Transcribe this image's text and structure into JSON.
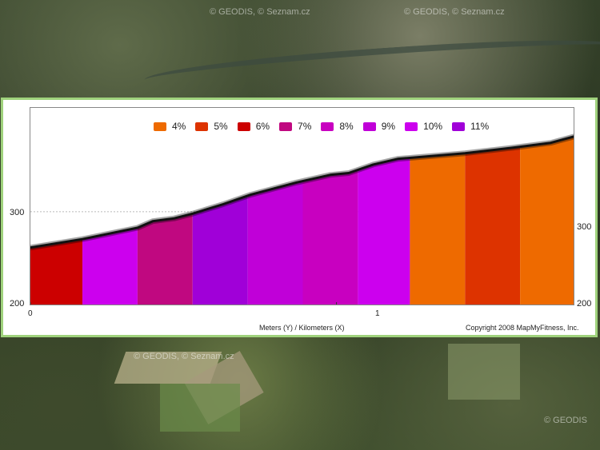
{
  "map": {
    "watermark_top_left": "© GEODIS, © Seznam.cz",
    "watermark_top_right": "© GEODIS, © Seznam.cz",
    "watermark_bottom_left": "© GEODIS, © Seznam.cz",
    "watermark_bottom_right": "© GEODIS"
  },
  "chart_data": {
    "type": "area",
    "x_unit": "km",
    "y_unit": "m",
    "xlabel": "Meters (Y) / Kilometers (X)",
    "copyright": "Copyright 2008 MapMyFitness, Inc.",
    "xlim": [
      0,
      1.78
    ],
    "ylim": [
      200,
      410
    ],
    "x_ticks": [
      0,
      1
    ],
    "y_ticks": [
      200,
      300
    ],
    "grid_line_y": 300,
    "legend_position": "top",
    "legend": [
      {
        "label": "4%",
        "color": "#ee6a00"
      },
      {
        "label": "5%",
        "color": "#dd3300"
      },
      {
        "label": "6%",
        "color": "#cc0000"
      },
      {
        "label": "7%",
        "color": "#c00880"
      },
      {
        "label": "8%",
        "color": "#c800c0"
      },
      {
        "label": "9%",
        "color": "#c000d8"
      },
      {
        "label": "10%",
        "color": "#cc00ee"
      },
      {
        "label": "11%",
        "color": "#a000d8"
      }
    ],
    "profile": [
      {
        "x": 0.0,
        "y": 262
      },
      {
        "x": 0.17,
        "y": 271
      },
      {
        "x": 0.35,
        "y": 283
      },
      {
        "x": 0.4,
        "y": 290
      },
      {
        "x": 0.47,
        "y": 293
      },
      {
        "x": 0.53,
        "y": 298
      },
      {
        "x": 0.63,
        "y": 308
      },
      {
        "x": 0.72,
        "y": 318
      },
      {
        "x": 0.87,
        "y": 331
      },
      {
        "x": 0.98,
        "y": 339
      },
      {
        "x": 1.04,
        "y": 341
      },
      {
        "x": 1.12,
        "y": 350
      },
      {
        "x": 1.2,
        "y": 356
      },
      {
        "x": 1.42,
        "y": 362
      },
      {
        "x": 1.58,
        "y": 368
      },
      {
        "x": 1.7,
        "y": 373
      },
      {
        "x": 1.78,
        "y": 380
      }
    ],
    "segments": [
      {
        "x0": 0.0,
        "x1": 0.17,
        "grade": "6%",
        "color": "#cc0000"
      },
      {
        "x0": 0.17,
        "x1": 0.35,
        "grade": "10%",
        "color": "#cc00ee"
      },
      {
        "x0": 0.35,
        "x1": 0.53,
        "grade": "7%",
        "color": "#c00880"
      },
      {
        "x0": 0.53,
        "x1": 0.71,
        "grade": "11%",
        "color": "#a000d8"
      },
      {
        "x0": 0.71,
        "x1": 0.89,
        "grade": "9%",
        "color": "#c000d8"
      },
      {
        "x0": 0.89,
        "x1": 1.07,
        "grade": "8%",
        "color": "#c800c0"
      },
      {
        "x0": 1.07,
        "x1": 1.24,
        "grade": "10%",
        "color": "#cc00ee"
      },
      {
        "x0": 1.24,
        "x1": 1.42,
        "grade": "4%",
        "color": "#ee6a00"
      },
      {
        "x0": 1.42,
        "x1": 1.6,
        "grade": "5%",
        "color": "#dd3300"
      },
      {
        "x0": 1.6,
        "x1": 1.78,
        "grade": "4%",
        "color": "#ee6a00"
      }
    ]
  }
}
